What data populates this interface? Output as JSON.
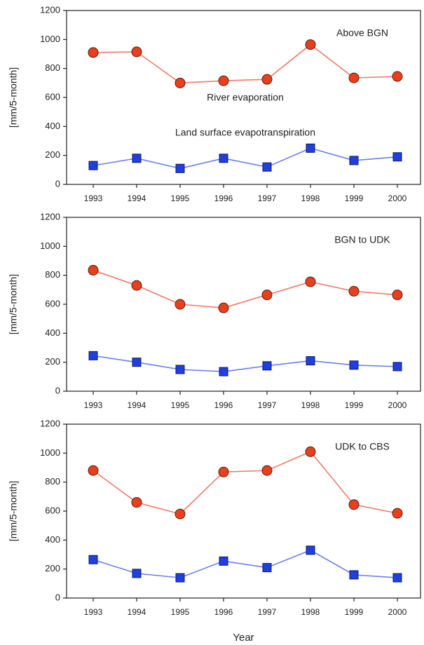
{
  "chart_data": [
    {
      "type": "line",
      "title": "Above BGN",
      "ylabel": "[mm/5-month]",
      "categories": [
        "1993",
        "1994",
        "1995",
        "1996",
        "1997",
        "1998",
        "1999",
        "2000"
      ],
      "ylim": [
        0,
        1200
      ],
      "yticks": [
        0,
        200,
        400,
        600,
        800,
        1000,
        1200
      ],
      "series": [
        {
          "name": "River evaporation",
          "color": "#e8401c",
          "marker": "circle",
          "values": [
            910,
            915,
            700,
            715,
            725,
            965,
            735,
            745
          ]
        },
        {
          "name": "Land surface evapotranspiration",
          "color": "#1f3fe0",
          "marker": "square",
          "values": [
            130,
            180,
            110,
            180,
            120,
            250,
            165,
            190
          ]
        }
      ]
    },
    {
      "type": "line",
      "title": "BGN to UDK",
      "ylabel": "[mm/5-month]",
      "categories": [
        "1993",
        "1994",
        "1995",
        "1996",
        "1997",
        "1998",
        "1999",
        "2000"
      ],
      "ylim": [
        0,
        1200
      ],
      "yticks": [
        0,
        200,
        400,
        600,
        800,
        1000,
        1200
      ],
      "series": [
        {
          "color": "#e8401c",
          "marker": "circle",
          "values": [
            835,
            730,
            600,
            575,
            665,
            755,
            690,
            665
          ]
        },
        {
          "color": "#1f3fe0",
          "marker": "square",
          "values": [
            245,
            200,
            150,
            135,
            175,
            210,
            180,
            170
          ]
        }
      ]
    },
    {
      "type": "line",
      "title": "UDK to CBS",
      "ylabel": "[mm/5-month]",
      "xlabel": "Year",
      "categories": [
        "1993",
        "1994",
        "1995",
        "1996",
        "1997",
        "1998",
        "1999",
        "2000"
      ],
      "ylim": [
        0,
        1200
      ],
      "yticks": [
        0,
        200,
        400,
        600,
        800,
        1000,
        1200
      ],
      "series": [
        {
          "color": "#e8401c",
          "marker": "circle",
          "values": [
            880,
            660,
            580,
            870,
            880,
            1010,
            645,
            585
          ]
        },
        {
          "color": "#1f3fe0",
          "marker": "square",
          "values": [
            265,
            170,
            140,
            255,
            210,
            330,
            160,
            140
          ]
        }
      ]
    }
  ]
}
